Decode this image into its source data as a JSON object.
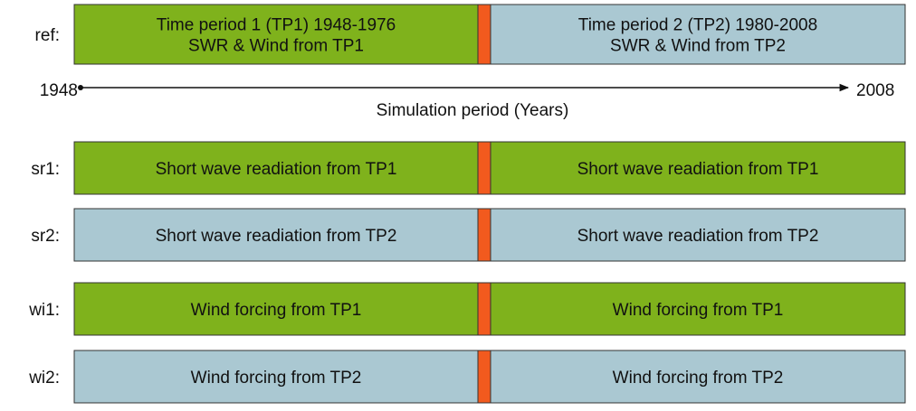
{
  "axis": {
    "start": "1948",
    "end": "2008",
    "label": "Simulation period (Years)"
  },
  "rows": [
    {
      "label": "ref:",
      "left": {
        "lines": [
          "Time period 1 (TP1) 1948-1976",
          "SWR & Wind from TP1"
        ],
        "color": "#7fb21c"
      },
      "right": {
        "lines": [
          "Time period 2 (TP2) 1980-2008",
          "SWR & Wind from TP2"
        ],
        "color": "#aac8d2"
      }
    },
    {
      "label": "sr1:",
      "left": {
        "lines": [
          "Short wave readiation from TP1"
        ],
        "color": "#7fb21c"
      },
      "right": {
        "lines": [
          "Short wave readiation from TP1"
        ],
        "color": "#7fb21c"
      }
    },
    {
      "label": "sr2:",
      "left": {
        "lines": [
          "Short wave readiation from TP2"
        ],
        "color": "#aac8d2"
      },
      "right": {
        "lines": [
          "Short wave readiation from TP2"
        ],
        "color": "#aac8d2"
      }
    },
    {
      "label": "wi1:",
      "left": {
        "lines": [
          "Wind forcing from TP1"
        ],
        "color": "#7fb21c"
      },
      "right": {
        "lines": [
          "Wind forcing from TP1"
        ],
        "color": "#7fb21c"
      }
    },
    {
      "label": "wi2:",
      "left": {
        "lines": [
          "Wind forcing from TP2"
        ],
        "color": "#aac8d2"
      },
      "right": {
        "lines": [
          "Wind forcing from TP2"
        ],
        "color": "#aac8d2"
      }
    }
  ]
}
